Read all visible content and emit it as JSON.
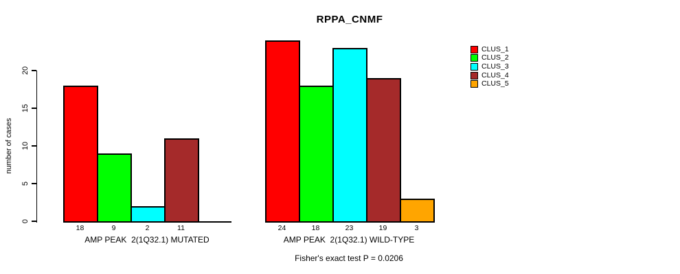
{
  "chart_data": {
    "type": "bar",
    "title": "RPPA_CNMF",
    "ylabel": "number of cases",
    "xlabel": "",
    "ylim": [
      0,
      24.2
    ],
    "yticks": [
      0,
      5,
      10,
      15,
      20
    ],
    "grid": false,
    "legend_position": "right",
    "categories": [
      "AMP PEAK  2(1Q32.1) MUTATED",
      "AMP PEAK  2(1Q32.1) WILD-TYPE"
    ],
    "series": [
      {
        "name": "CLUS_1",
        "color": "#ff0000",
        "values": [
          18,
          24
        ]
      },
      {
        "name": "CLUS_2",
        "color": "#00ff00",
        "values": [
          9,
          18
        ]
      },
      {
        "name": "CLUS_3",
        "color": "#00ffff",
        "values": [
          2,
          23
        ]
      },
      {
        "name": "CLUS_4",
        "color": "#a52a2a",
        "values": [
          11,
          19
        ]
      },
      {
        "name": "CLUS_5",
        "color": "#ffa500",
        "values": [
          null,
          3
        ]
      }
    ],
    "annotation": "Fisher's exact test P = 0.0206",
    "axis_color": "#000000",
    "bar_border_color": "#000000"
  }
}
